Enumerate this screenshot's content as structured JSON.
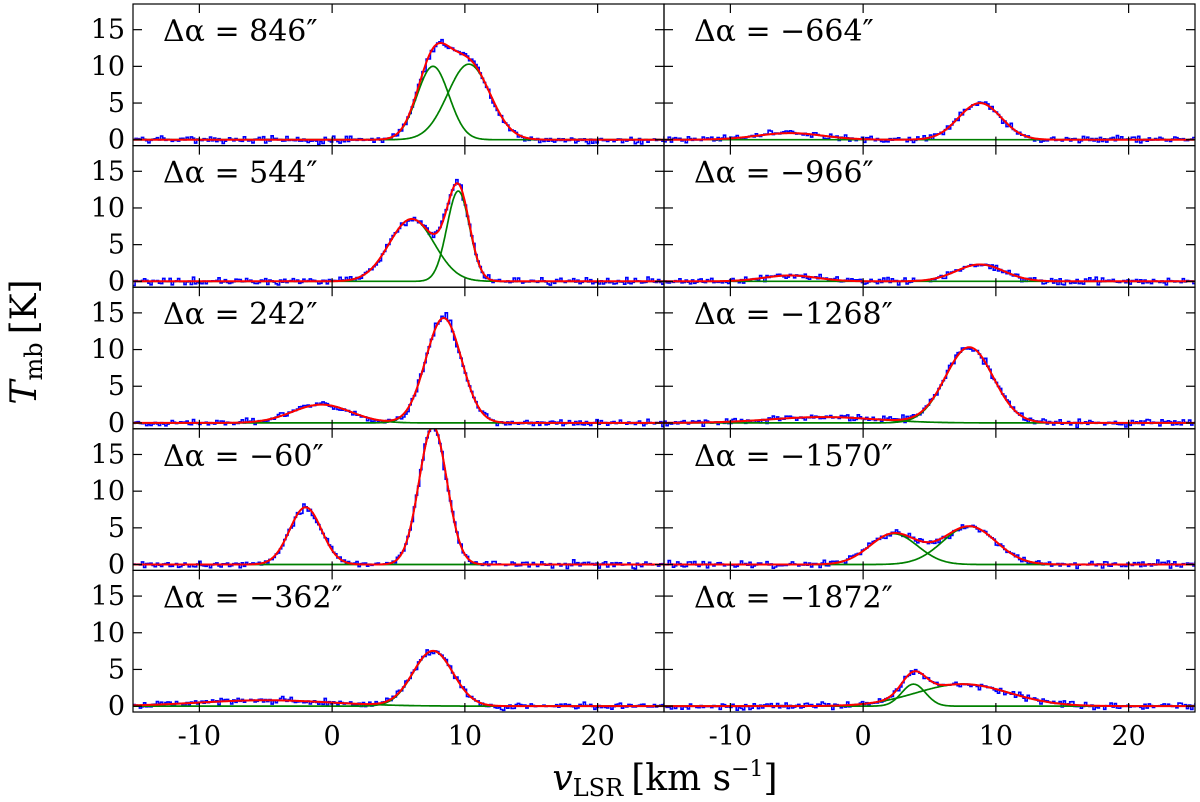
{
  "chart_data": {
    "type": "line",
    "layout": "grid 5 rows x 2 columns, shared axes",
    "xlabel": {
      "symbol": "v",
      "subscript": "LSR",
      "unit": "[km s",
      "unit_exp": "−1",
      "unit_close": "]"
    },
    "ylabel": {
      "symbol": "T",
      "subscript": "mb",
      "unit": "[K]"
    },
    "xlim": [
      -15,
      25
    ],
    "ylim": [
      -0.8,
      18.5
    ],
    "xticks": [
      -10,
      0,
      10,
      20
    ],
    "yticks": [
      0,
      5,
      10,
      15
    ],
    "colors": {
      "observed": "#0000ff",
      "fit": "#ff0000",
      "components": "#008000"
    },
    "panels": [
      {
        "label": "Δα = 846″",
        "components": [
          {
            "amp": 10.0,
            "center": 7.6,
            "sigma": 1.2
          },
          {
            "amp": 10.3,
            "center": 10.3,
            "sigma": 1.6
          }
        ]
      },
      {
        "label": "Δα = −664″",
        "components": [
          {
            "amp": 0.9,
            "center": -5.5,
            "sigma": 2.5
          },
          {
            "amp": 5.0,
            "center": 8.8,
            "sigma": 1.6
          }
        ]
      },
      {
        "label": "Δα = 544″",
        "components": [
          {
            "amp": 8.5,
            "center": 6.0,
            "sigma": 1.7
          },
          {
            "amp": 12.3,
            "center": 9.5,
            "sigma": 0.85
          }
        ]
      },
      {
        "label": "Δα = −966″",
        "components": [
          {
            "amp": 0.8,
            "center": -5.5,
            "sigma": 2.0
          },
          {
            "amp": 2.3,
            "center": 8.8,
            "sigma": 1.8
          }
        ]
      },
      {
        "label": "Δα = 242″",
        "components": [
          {
            "amp": 2.5,
            "center": -0.8,
            "sigma": 2.2
          },
          {
            "amp": 14.3,
            "center": 8.4,
            "sigma": 1.35
          }
        ]
      },
      {
        "label": "Δα = −1268″",
        "components": [
          {
            "amp": 0.8,
            "center": -3.0,
            "sigma": 4.0
          },
          {
            "amp": 10.3,
            "center": 8.0,
            "sigma": 1.8
          }
        ]
      },
      {
        "label": "Δα = −60″",
        "components": [
          {
            "amp": 7.8,
            "center": -2.0,
            "sigma": 1.2
          },
          {
            "amp": 18.8,
            "center": 7.6,
            "sigma": 1.05
          }
        ]
      },
      {
        "label": "Δα = −1570″",
        "components": [
          {
            "amp": 4.2,
            "center": 2.3,
            "sigma": 1.8
          },
          {
            "amp": 5.2,
            "center": 8.0,
            "sigma": 2.0
          }
        ]
      },
      {
        "label": "Δα = −362″",
        "components": [
          {
            "amp": 0.8,
            "center": -5.0,
            "sigma": 5.0
          },
          {
            "amp": 7.5,
            "center": 7.6,
            "sigma": 1.5
          }
        ]
      },
      {
        "label": "Δα = −1872″",
        "components": [
          {
            "amp": 3.0,
            "center": 3.8,
            "sigma": 0.9
          },
          {
            "amp": 3.0,
            "center": 7.5,
            "sigma": 3.5
          }
        ]
      }
    ]
  }
}
